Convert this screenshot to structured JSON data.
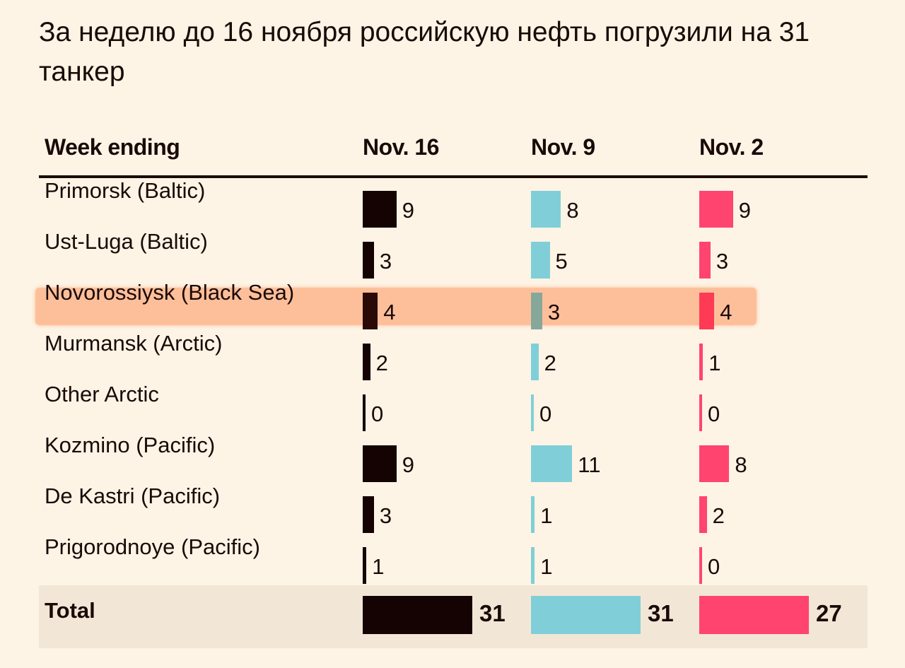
{
  "title": "За неделю до 16 ноября российскую нефть погрузили на 31 танкер",
  "chart_data": {
    "type": "bar",
    "header": "Week ending",
    "columns": [
      "Nov. 16",
      "Nov. 9",
      "Nov. 2"
    ],
    "colors": [
      "#150303",
      "#80cfd8",
      "#ff4470"
    ],
    "highlight_color": "#fdbf9a",
    "highlighted_row": "Novorossiysk (Black Sea)",
    "categories": [
      "Primorsk (Baltic)",
      "Ust-Luga (Baltic)",
      "Novorossiysk (Black Sea)",
      "Murmansk (Arctic)",
      "Other Arctic",
      "Kozmino (Pacific)",
      "De Kastri (Pacific)",
      "Prigorodnoye (Pacific)"
    ],
    "series": [
      {
        "name": "Nov. 16",
        "values": [
          9,
          3,
          4,
          2,
          0,
          9,
          3,
          1
        ]
      },
      {
        "name": "Nov. 9",
        "values": [
          8,
          5,
          3,
          2,
          0,
          11,
          1,
          1
        ]
      },
      {
        "name": "Nov. 2",
        "values": [
          9,
          3,
          4,
          1,
          0,
          8,
          2,
          0
        ]
      }
    ],
    "total_label": "Total",
    "totals": [
      31,
      31,
      27
    ]
  }
}
